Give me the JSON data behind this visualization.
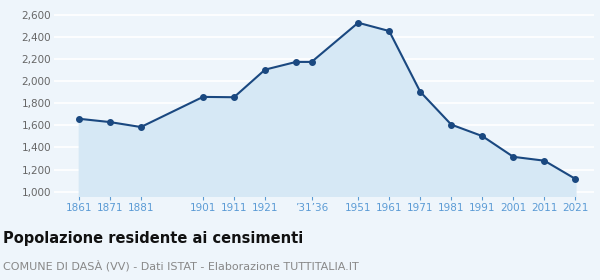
{
  "years": [
    1861,
    1871,
    1881,
    1901,
    1911,
    1921,
    1931,
    1936,
    1951,
    1961,
    1971,
    1981,
    1991,
    2001,
    2011,
    2021
  ],
  "values": [
    1660,
    1630,
    1585,
    1858,
    1855,
    2105,
    2175,
    2175,
    2530,
    2455,
    1905,
    1607,
    1503,
    1315,
    1280,
    1115
  ],
  "tick_positions": [
    1861,
    1871,
    1881,
    1901,
    1911,
    1921,
    1936,
    1951,
    1961,
    1971,
    1981,
    1991,
    2001,
    2011,
    2021
  ],
  "tick_labels": [
    "1861",
    "1871",
    "1881",
    "1901",
    "1911",
    "1921",
    "’31′36",
    "1951",
    "1961",
    "1971",
    "1981",
    "1991",
    "2001",
    "2011",
    "2021"
  ],
  "yticks": [
    1000,
    1200,
    1400,
    1600,
    1800,
    2000,
    2200,
    2400,
    2600
  ],
  "ylim": [
    960,
    2660
  ],
  "xlim": [
    1853,
    2027
  ],
  "line_color": "#1a4880",
  "fill_color": "#d6e8f5",
  "marker_color": "#1a4880",
  "bg_color": "#eef5fb",
  "grid_color": "#ffffff",
  "title": "Popolazione residente ai censimenti",
  "subtitle": "COMUNE DI DASÀ (VV) - Dati ISTAT - Elaborazione TUTTITALIA.IT",
  "tick_label_color": "#5b9bd5",
  "ytick_label_color": "#666666",
  "title_fontsize": 10.5,
  "subtitle_fontsize": 8,
  "tick_fontsize": 7.5
}
